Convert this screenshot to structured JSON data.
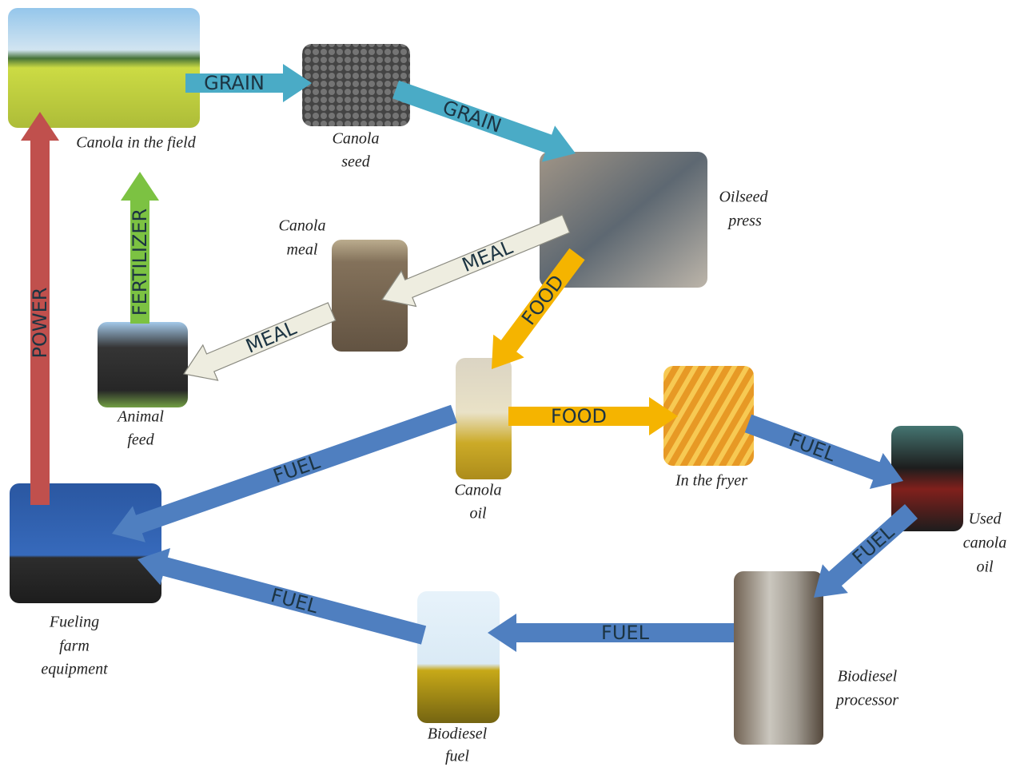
{
  "nodes": [
    {
      "label": [
        "Canola in the field"
      ]
    },
    {
      "label": [
        "Canola",
        "seed"
      ]
    },
    {
      "label": [
        "Oilseed",
        "press"
      ]
    },
    {
      "label": [
        "Canola",
        "meal"
      ]
    },
    {
      "label": [
        "Animal",
        "feed"
      ]
    },
    {
      "label": [
        "Canola",
        "oil"
      ]
    },
    {
      "label": [
        "In the fryer"
      ]
    },
    {
      "label": [
        "Used",
        "canola",
        "oil"
      ]
    },
    {
      "label": [
        "Biodiesel",
        "processor"
      ]
    },
    {
      "label": [
        "Biodiesel",
        "fuel"
      ]
    },
    {
      "label": [
        "Fueling",
        "farm",
        "equipment"
      ]
    }
  ],
  "edges": [
    {
      "label": "GRAIN"
    },
    {
      "label": "GRAIN"
    },
    {
      "label": "MEAL"
    },
    {
      "label": "FOOD"
    },
    {
      "label": "MEAL"
    },
    {
      "label": "FERTILIZER"
    },
    {
      "label": "POWER"
    },
    {
      "label": "FOOD"
    },
    {
      "label": "FUEL"
    },
    {
      "label": "FUEL"
    },
    {
      "label": "FUEL"
    },
    {
      "label": "FUEL"
    },
    {
      "label": "FUEL"
    }
  ]
}
